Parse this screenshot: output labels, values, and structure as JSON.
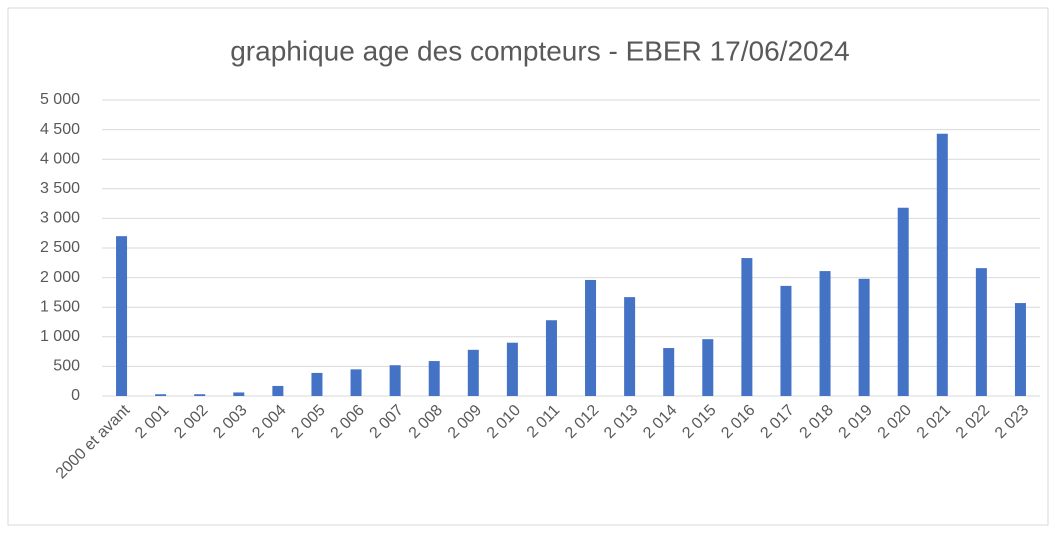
{
  "chart_data": {
    "type": "bar",
    "title": "graphique age des compteurs - EBER 17/06/2024",
    "categories": [
      "2000 et avant",
      "2 001",
      "2 002",
      "2 003",
      "2 004",
      "2 005",
      "2 006",
      "2 007",
      "2 008",
      "2 009",
      "2 010",
      "2 011",
      "2 012",
      "2 013",
      "2 014",
      "2 015",
      "2 016",
      "2 017",
      "2 018",
      "2 019",
      "2 020",
      "2 021",
      "2 022",
      "2 023"
    ],
    "values": [
      2700,
      30,
      30,
      60,
      170,
      390,
      450,
      520,
      590,
      780,
      900,
      1280,
      1960,
      1670,
      810,
      960,
      2330,
      1860,
      2110,
      1980,
      3180,
      4430,
      2160,
      1570
    ],
    "color": "#4472c4",
    "ylim": [
      0,
      5000
    ],
    "yticks": [
      0,
      500,
      {
        "value": 1000,
        "label": "1 000"
      },
      {
        "value": 1500,
        "label": "1 500"
      },
      {
        "value": 2000,
        "label": "2 000"
      },
      {
        "value": 2500,
        "label": "2 500"
      },
      {
        "value": 3000,
        "label": "3 000"
      },
      {
        "value": 3500,
        "label": "3 500"
      },
      {
        "value": 4000,
        "label": "4 000"
      },
      {
        "value": 4500,
        "label": "4 500"
      },
      {
        "value": 5000,
        "label": "5 000"
      }
    ],
    "grid": true
  }
}
